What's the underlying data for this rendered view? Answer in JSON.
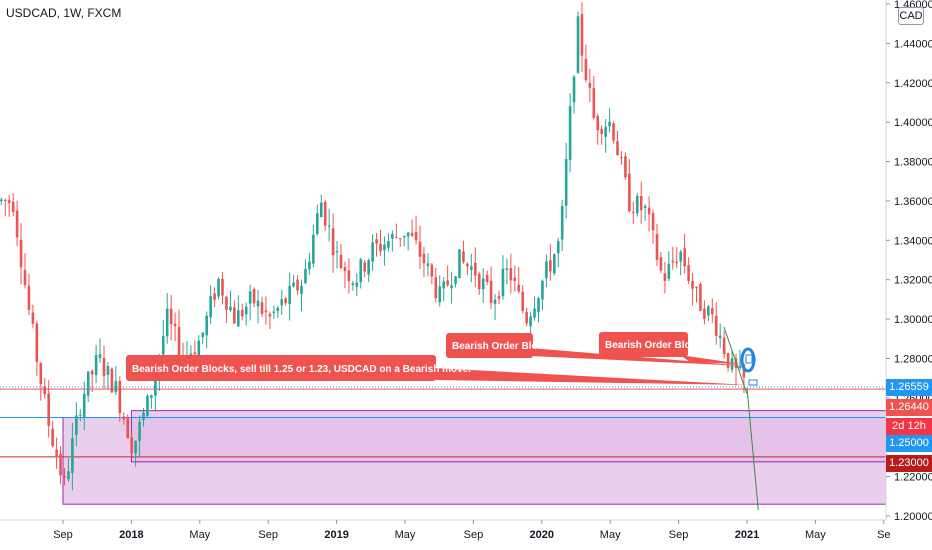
{
  "header": {
    "symbol_title": "USDCAD, 1W, FXCM",
    "currency_badge": "CAD"
  },
  "price_tags": {
    "current": "1.26559",
    "level_1": "1.26440",
    "countdown": "2d 12h",
    "level_2": "1.25000",
    "level_3": "1.23000"
  },
  "annotations": {
    "main_callout": "Bearish Order Blocks, sell till 1.25 or 1.23, USDCAD on a Bearish move.",
    "callout_a": "Bearish Order Block",
    "callout_b": "Bearish Order Block"
  },
  "colors": {
    "up": "#26a69a",
    "down": "#ef5350",
    "zone_fill": "#e1bee7",
    "zone_border": "#9c27b0",
    "callout": "#ef5350",
    "current_tag": "#2196f3",
    "countdown_tag": "#f23645",
    "level_1_tag": "#ef5350",
    "level_3_tag": "#b71c1c"
  },
  "chart_data": {
    "type": "candlestick",
    "title": "USDCAD, 1W, FXCM",
    "y_ticks": [
      "1.20000",
      "1.22000",
      "1.24000",
      "1.26000",
      "1.28000",
      "1.30000",
      "1.32000",
      "1.34000",
      "1.36000",
      "1.38000",
      "1.40000",
      "1.42000",
      "1.44000",
      "1.46000"
    ],
    "x_ticks": [
      "Sep",
      "2018",
      "May",
      "Sep",
      "2019",
      "May",
      "Sep",
      "2020",
      "May",
      "Sep",
      "2021",
      "May",
      "Se"
    ],
    "ylim": [
      1.197,
      1.462
    ],
    "grid": false,
    "price_path": [
      [
        "2017-06",
        1.36
      ],
      [
        "2017-07",
        1.3
      ],
      [
        "2017-08",
        1.25
      ],
      [
        "2017-09",
        1.215
      ],
      [
        "2017-10",
        1.26
      ],
      [
        "2017-11",
        1.28
      ],
      [
        "2017-12",
        1.265
      ],
      [
        "2018-01",
        1.235
      ],
      [
        "2018-02",
        1.26
      ],
      [
        "2018-03",
        1.3
      ],
      [
        "2018-04",
        1.28
      ],
      [
        "2018-05",
        1.29
      ],
      [
        "2018-06",
        1.32
      ],
      [
        "2018-07",
        1.3
      ],
      [
        "2018-08",
        1.31
      ],
      [
        "2018-09",
        1.3
      ],
      [
        "2018-10",
        1.31
      ],
      [
        "2018-11",
        1.32
      ],
      [
        "2018-12",
        1.36
      ],
      [
        "2019-01",
        1.33
      ],
      [
        "2019-02",
        1.32
      ],
      [
        "2019-03",
        1.335
      ],
      [
        "2019-04",
        1.34
      ],
      [
        "2019-05",
        1.345
      ],
      [
        "2019-06",
        1.33
      ],
      [
        "2019-07",
        1.31
      ],
      [
        "2019-08",
        1.33
      ],
      [
        "2019-09",
        1.325
      ],
      [
        "2019-10",
        1.31
      ],
      [
        "2019-11",
        1.325
      ],
      [
        "2019-12",
        1.3
      ],
      [
        "2020-01",
        1.32
      ],
      [
        "2020-02",
        1.34
      ],
      [
        "2020-03",
        1.45
      ],
      [
        "2020-04",
        1.4
      ],
      [
        "2020-05",
        1.4
      ],
      [
        "2020-06",
        1.36
      ],
      [
        "2020-07",
        1.355
      ],
      [
        "2020-08",
        1.32
      ],
      [
        "2020-09",
        1.335
      ],
      [
        "2020-10",
        1.31
      ],
      [
        "2020-11",
        1.3
      ],
      [
        "2020-12",
        1.275
      ],
      [
        "2021-01",
        1.266
      ]
    ],
    "last_price": 1.26559,
    "zones": [
      {
        "from": "2017-09",
        "to": "end",
        "y_top": 1.25,
        "y_bottom": 1.206
      },
      {
        "from": "2018-01",
        "to": "end",
        "y_top": 1.2535,
        "y_bottom": 1.2275
      }
    ],
    "horizontal_lines": [
      1.2644,
      1.25,
      1.23
    ],
    "projection": {
      "from": [
        "2021-01",
        1.265
      ],
      "to": [
        "2021-04",
        1.203
      ]
    }
  }
}
